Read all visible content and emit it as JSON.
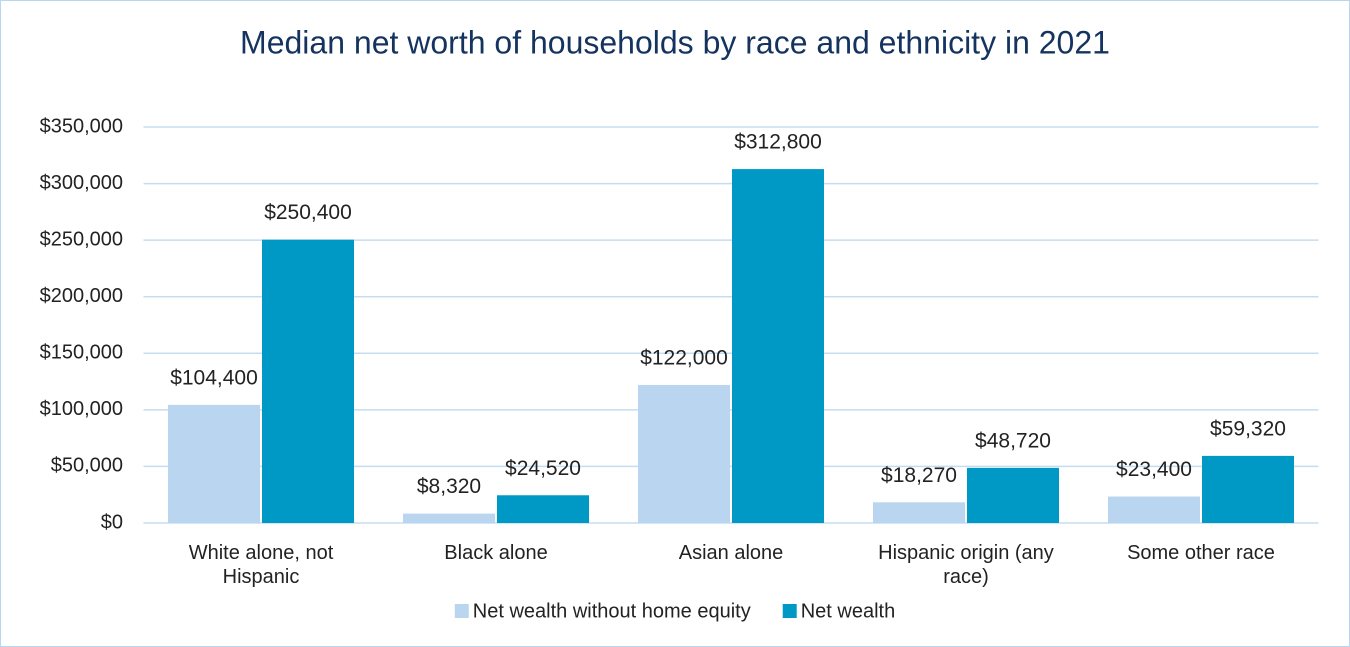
{
  "chart_data": {
    "type": "bar",
    "title": "Median net worth of households by race and ethnicity in 2021",
    "categories": [
      "White alone, not Hispanic",
      "Black alone",
      "Asian alone",
      "Hispanic origin (any race)",
      "Some other race"
    ],
    "series": [
      {
        "name": "Net wealth without home equity",
        "color": "#b9d5ef",
        "values": [
          104400,
          8320,
          122000,
          18270,
          23400
        ],
        "value_labels": [
          "$104,400",
          "$8,320",
          "$122,000",
          "$18,270",
          "$23,400"
        ]
      },
      {
        "name": "Net wealth",
        "color": "#0099c6",
        "values": [
          250400,
          24520,
          312800,
          48720,
          59320
        ],
        "value_labels": [
          "$250,400",
          "$24,520",
          "$312,800",
          "$48,720",
          "$59,320"
        ]
      }
    ],
    "ylim": [
      0,
      350000
    ],
    "yticks": [
      {
        "value": 0,
        "label": "$0"
      },
      {
        "value": 50000,
        "label": "$50,000"
      },
      {
        "value": 100000,
        "label": "$100,000"
      },
      {
        "value": 150000,
        "label": "$150,000"
      },
      {
        "value": 200000,
        "label": "$200,000"
      },
      {
        "value": 250000,
        "label": "$250,000"
      },
      {
        "value": 300000,
        "label": "$300,000"
      },
      {
        "value": 350000,
        "label": "$350,000"
      }
    ],
    "grid": true,
    "legend": "bottom"
  }
}
